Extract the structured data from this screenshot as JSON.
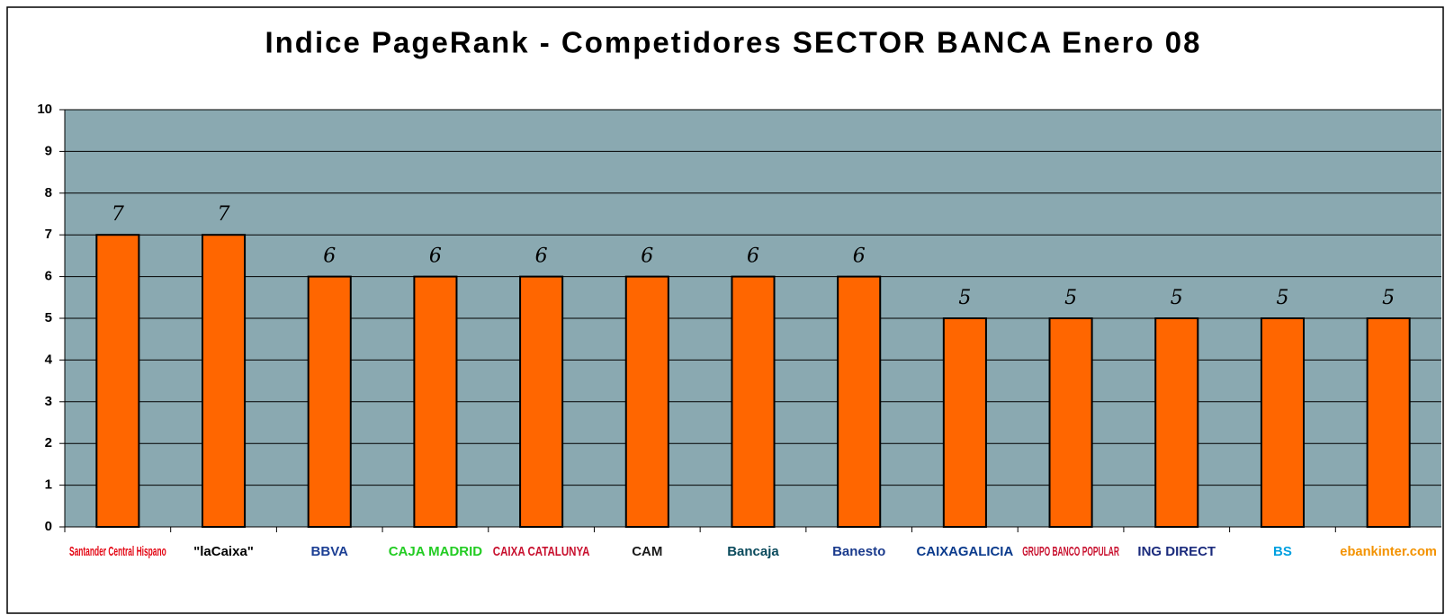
{
  "chart_data": {
    "type": "bar",
    "title": "Indice PageRank - Competidores SECTOR BANCA Enero 08",
    "categories": [
      "Santander Central Hispano",
      "\"laCaixa\"",
      "BBVA",
      "CAJA MADRID",
      "CAIXA CATALUNYA",
      "CAM",
      "Bancaja",
      "Banesto",
      "CAIXAGALICIA",
      "GRUPO BANCO POPULAR",
      "ING DIRECT",
      "BS",
      "ebankinter.com"
    ],
    "category_colors": [
      "#e30613",
      "#000000",
      "#1c3f94",
      "#22cc22",
      "#c8102e",
      "#1a1a1a",
      "#0a4a5c",
      "#1a3a8c",
      "#0a3a8c",
      "#c8102e",
      "#1a2a7c",
      "#00a0e0",
      "#f39200"
    ],
    "values": [
      7,
      7,
      6,
      6,
      6,
      6,
      6,
      6,
      5,
      5,
      5,
      5,
      5
    ],
    "color": "#ff6600",
    "ylim": [
      0,
      10
    ],
    "yticks": [
      0,
      1,
      2,
      3,
      4,
      5,
      6,
      7,
      8,
      9,
      10
    ],
    "grid": true
  }
}
